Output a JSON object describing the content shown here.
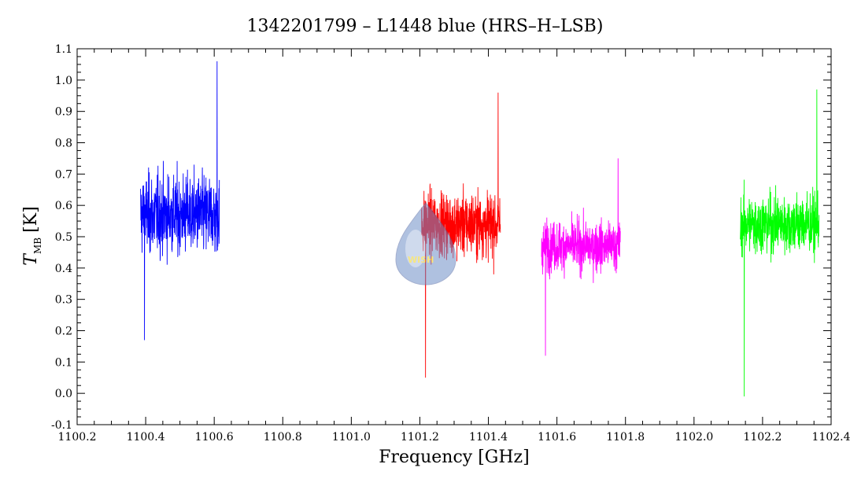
{
  "chart_data": {
    "type": "line",
    "title": "1342201799 – L1448 blue (HRS–H–LSB)",
    "xlabel": "Frequency [GHz]",
    "ylabel_main": "T",
    "ylabel_sub": "MB",
    "ylabel_unit": "[K]",
    "xlim": [
      1100.2,
      1102.4
    ],
    "ylim": [
      -0.1,
      1.1
    ],
    "x_ticks": [
      "1100.2",
      "1100.4",
      "1100.6",
      "1100.8",
      "1101.0",
      "1101.2",
      "1101.4",
      "1101.6",
      "1101.8",
      "1102.0",
      "1102.2",
      "1102.4"
    ],
    "y_ticks": [
      "-0.1",
      "0.0",
      "0.1",
      "0.2",
      "0.3",
      "0.4",
      "0.5",
      "0.6",
      "0.7",
      "0.8",
      "0.9",
      "1.0",
      "1.1"
    ],
    "grid": false,
    "series": [
      {
        "color": "#0000ff",
        "x_range": [
          1100.385,
          1100.615
        ],
        "mean": 0.57,
        "min": 0.17,
        "max": 1.06,
        "noise": 0.16
      },
      {
        "color": "#ff0000",
        "x_range": [
          1101.205,
          1101.435
        ],
        "mean": 0.54,
        "min": 0.05,
        "max": 0.96,
        "noise": 0.13
      },
      {
        "color": "#ff00ff",
        "x_range": [
          1101.555,
          1101.785
        ],
        "mean": 0.47,
        "min": 0.12,
        "max": 0.75,
        "noise": 0.1
      },
      {
        "color": "#00ff00",
        "x_range": [
          1102.135,
          1102.365
        ],
        "mean": 0.54,
        "min": -0.01,
        "max": 0.97,
        "noise": 0.12
      }
    ],
    "watermark": {
      "label": "WISH",
      "icon": "drop-logo-icon"
    }
  }
}
